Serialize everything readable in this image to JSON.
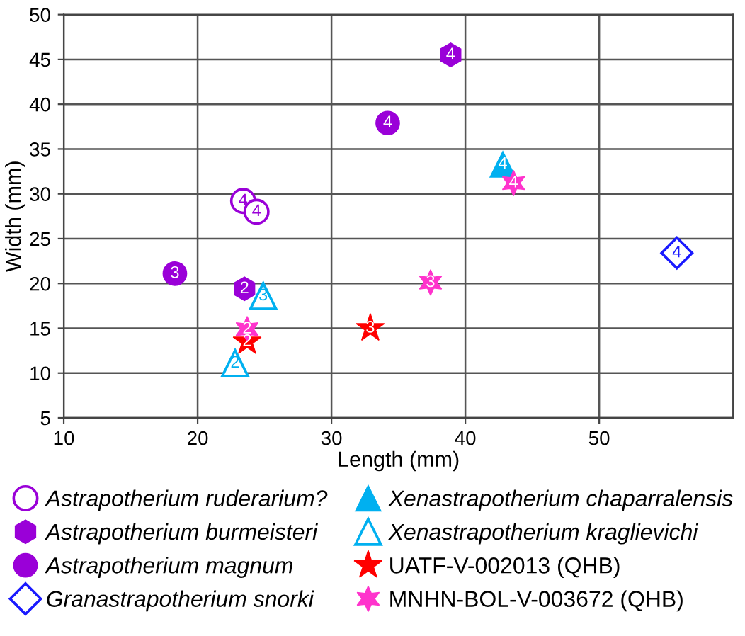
{
  "chart_data": {
    "type": "scatter",
    "xlabel": "Length (mm)",
    "ylabel": "Width (mm)",
    "xlim": [
      10,
      60
    ],
    "xticks": [
      10,
      20,
      30,
      40,
      50
    ],
    "ylim": [
      5,
      50
    ],
    "yticks": [
      5,
      10,
      15,
      20,
      25,
      30,
      35,
      40,
      45,
      50
    ],
    "grid": true,
    "legend": "bottom",
    "series": [
      {
        "name": "Astrapotherium ruderarium?",
        "color": "#9a00d8",
        "marker": "circle-open",
        "x": [
          23.4,
          24.4
        ],
        "values": [
          29.2,
          28.0
        ]
      },
      {
        "name": "Astrapotherium burmeisteri",
        "color": "#9a00d8",
        "x": [
          23.5,
          38.9
        ],
        "values": [
          19.4,
          45.5
        ]
      },
      {
        "name": "Astrapotherium magnum",
        "color": "#9a00d8",
        "marker": "circle",
        "x": [
          18.3,
          34.2
        ],
        "values": [
          21.1,
          37.9
        ]
      },
      {
        "name": "Granastrapotherium snorki",
        "color": "#1a1aff",
        "marker": "diamond-open",
        "x": [
          55.8
        ],
        "values": [
          23.4
        ]
      },
      {
        "name": "Xenastrapotherium chaparralensis",
        "color": "#00b0f0",
        "marker": "triangle",
        "x": [
          42.8
        ],
        "values": [
          33.3
        ]
      },
      {
        "name": "Xenastrapotherium kraglievichi",
        "color": "#00b0f0",
        "marker": "triangle-open",
        "x": [
          24.9,
          22.8
        ],
        "values": [
          18.6,
          11.1
        ]
      },
      {
        "name": "UATF-V-002013 (QHB)",
        "color": "#ff0000",
        "marker": "star",
        "x": [
          23.7,
          32.9
        ],
        "values": [
          13.5,
          15.0
        ]
      },
      {
        "name": "MNHN-BOL-V-003672 (QHB)",
        "color": "#ff33cc",
        "x": [
          23.7,
          37.4,
          43.6
        ],
        "values": [
          14.9,
          20.1,
          31.2
        ]
      }
    ],
    "annotations": [
      {
        "text": "4",
        "x": 23.4,
        "y": 29.2
      },
      {
        "text": "4",
        "x": 24.4,
        "y": 28.0
      },
      {
        "text": "2",
        "x": 23.5,
        "y": 19.4
      },
      {
        "text": "4",
        "x": 38.9,
        "y": 45.5
      },
      {
        "text": "3",
        "x": 18.3,
        "y": 21.1
      },
      {
        "text": "4",
        "x": 34.2,
        "y": 37.9
      },
      {
        "text": "4",
        "x": 55.8,
        "y": 23.4
      },
      {
        "text": "4",
        "x": 42.8,
        "y": 33.3
      },
      {
        "text": "3",
        "x": 24.9,
        "y": 18.6
      },
      {
        "text": "2",
        "x": 22.8,
        "y": 11.1
      },
      {
        "text": "2",
        "x": 23.7,
        "y": 13.5
      },
      {
        "text": "3",
        "x": 32.9,
        "y": 15.0
      },
      {
        "text": "2",
        "x": 23.7,
        "y": 14.9
      },
      {
        "text": "3",
        "x": 37.4,
        "y": 20.1
      },
      {
        "text": "4",
        "x": 43.6,
        "y": 31.2
      }
    ]
  }
}
